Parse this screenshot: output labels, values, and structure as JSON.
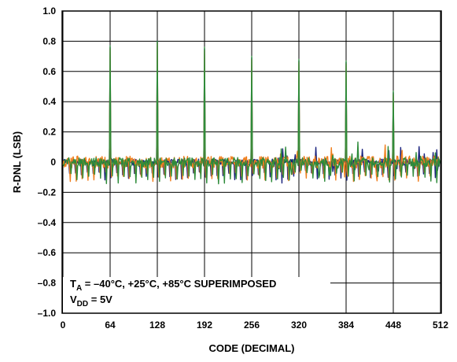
{
  "chart_data": {
    "type": "line",
    "title": "",
    "xlabel": "CODE (DECIMAL)",
    "ylabel": "R-DNL (LSB)",
    "xlim": [
      0,
      512
    ],
    "ylim": [
      -1.0,
      1.0
    ],
    "grid": true,
    "x_ticks": [
      0,
      64,
      128,
      192,
      256,
      320,
      384,
      448,
      512
    ],
    "x_tick_labels": [
      "0",
      "64",
      "128",
      "192",
      "256",
      "320",
      "384",
      "448",
      "512"
    ],
    "y_ticks": [
      1.0,
      0.8,
      0.6,
      0.4,
      0.2,
      0,
      -0.2,
      -0.4,
      -0.6,
      -0.8,
      -1.0
    ],
    "y_tick_labels": [
      "1.0",
      "0.8",
      "0.6",
      "0.4",
      "0.2",
      "0",
      "–0.2",
      "–0.4",
      "–0.6",
      "–0.8",
      "–1.0"
    ],
    "annotation": {
      "line1_main": "T",
      "line1_sub": "A",
      "line1_rest": " = –40°C, +25°C, +85°C SUPERIMPOSED",
      "line2_main": "V",
      "line2_sub": "DD",
      "line2_rest": " = 5V"
    },
    "series": [
      {
        "color": "#1a237e",
        "baseline": 0.0,
        "noise": 0.02,
        "dip_period": 8,
        "dip_depth": -0.1,
        "spikes": [
          {
            "x": 64,
            "y": 0.76
          },
          {
            "x": 128,
            "y": 0.8
          },
          {
            "x": 192,
            "y": 0.75
          },
          {
            "x": 256,
            "y": 0.69
          },
          {
            "x": 320,
            "y": 0.67
          },
          {
            "x": 384,
            "y": 0.66
          },
          {
            "x": 448,
            "y": 0.46
          }
        ]
      },
      {
        "color": "#f07f1e",
        "baseline": 0.0,
        "noise": 0.04,
        "dip_period": 8,
        "dip_depth": -0.11,
        "spikes": [
          {
            "x": 64,
            "y": 0.75
          },
          {
            "x": 128,
            "y": 0.79
          },
          {
            "x": 192,
            "y": 0.74
          },
          {
            "x": 256,
            "y": 0.68
          },
          {
            "x": 320,
            "y": 0.66
          },
          {
            "x": 384,
            "y": 0.65
          },
          {
            "x": 448,
            "y": 0.45
          }
        ]
      },
      {
        "color": "#2e8b3a",
        "baseline": 0.0,
        "noise": 0.03,
        "dip_period": 8,
        "dip_depth": -0.12,
        "spikes": [
          {
            "x": 64,
            "y": 0.77
          },
          {
            "x": 128,
            "y": 0.8
          },
          {
            "x": 192,
            "y": 0.76
          },
          {
            "x": 256,
            "y": 0.7
          },
          {
            "x": 320,
            "y": 0.68
          },
          {
            "x": 384,
            "y": 0.67
          },
          {
            "x": 448,
            "y": 0.47
          }
        ]
      }
    ]
  }
}
